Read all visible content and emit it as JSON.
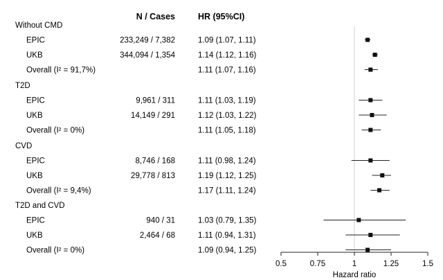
{
  "chart_data": {
    "type": "forest",
    "headers": {
      "n_cases": "N / Cases",
      "hr": "HR (95%CI)"
    },
    "xlabel": "Hazard ratio",
    "xlim": [
      0.5,
      1.5
    ],
    "xticks": [
      0.5,
      0.75,
      1,
      1.25,
      1.5
    ],
    "xtick_labels": [
      "0.5",
      "0.75",
      "1",
      "1.25",
      "1.5"
    ],
    "reference_line": 1,
    "groups": [
      {
        "title": "Without CMD",
        "rows": [
          {
            "label": "EPIC",
            "n_cases": "233,249 / 7,382",
            "hr_text": "1.09 (1.07, 1.11)",
            "hr": 1.09,
            "lo": 1.07,
            "hi": 1.11
          },
          {
            "label": "UKB",
            "n_cases": "344,094 / 1,354",
            "hr_text": "1.14 (1.12, 1.16)",
            "hr": 1.14,
            "lo": 1.12,
            "hi": 1.16
          },
          {
            "label": "Overall (I² = 91,7%)",
            "n_cases": "",
            "hr_text": "1.11 (1.07, 1.16)",
            "hr": 1.11,
            "lo": 1.07,
            "hi": 1.16
          }
        ]
      },
      {
        "title": "T2D",
        "rows": [
          {
            "label": "EPIC",
            "n_cases": "9,961 / 311",
            "hr_text": "1.11 (1.03, 1.19)",
            "hr": 1.11,
            "lo": 1.03,
            "hi": 1.19
          },
          {
            "label": "UKB",
            "n_cases": "14,149 / 291",
            "hr_text": "1.12 (1.03, 1.22)",
            "hr": 1.12,
            "lo": 1.03,
            "hi": 1.22
          },
          {
            "label": "Overall (I² = 0%)",
            "n_cases": "",
            "hr_text": "1.11 (1.05, 1.18)",
            "hr": 1.11,
            "lo": 1.05,
            "hi": 1.18
          }
        ]
      },
      {
        "title": "CVD",
        "rows": [
          {
            "label": "EPIC",
            "n_cases": "8,746 / 168",
            "hr_text": "1.11 (0.98, 1.24)",
            "hr": 1.11,
            "lo": 0.98,
            "hi": 1.24
          },
          {
            "label": "UKB",
            "n_cases": "29,778 / 813",
            "hr_text": "1.19 (1.12, 1.25)",
            "hr": 1.19,
            "lo": 1.12,
            "hi": 1.25
          },
          {
            "label": "Overall (I² = 9,4%)",
            "n_cases": "",
            "hr_text": "1.17 (1.11, 1.24)",
            "hr": 1.17,
            "lo": 1.11,
            "hi": 1.24
          }
        ]
      },
      {
        "title": "T2D and CVD",
        "rows": [
          {
            "label": "EPIC",
            "n_cases": "940 / 31",
            "hr_text": "1.03 (0.79, 1.35)",
            "hr": 1.03,
            "lo": 0.79,
            "hi": 1.35
          },
          {
            "label": "UKB",
            "n_cases": "2,464 / 68",
            "hr_text": "1.11 (0.94, 1.31)",
            "hr": 1.11,
            "lo": 0.94,
            "hi": 1.31
          },
          {
            "label": "Overall (I² = 0%)",
            "n_cases": "",
            "hr_text": "1.09 (0.94, 1.25)",
            "hr": 1.09,
            "lo": 0.94,
            "hi": 1.25
          }
        ]
      }
    ]
  }
}
